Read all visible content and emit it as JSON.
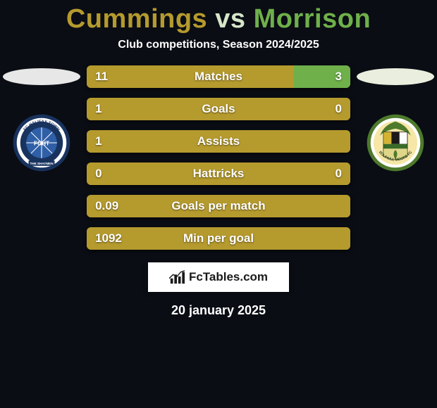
{
  "title": {
    "left": "Cummings",
    "right": "Morrison",
    "left_color": "#b59a2e",
    "right_color": "#6fb04a",
    "vs_color": "#d5e6c9"
  },
  "subtitle": "Club competitions, Season 2024/2025",
  "date": "20 january 2025",
  "brand": "FcTables.com",
  "shadow_left_color": "#e7e7e7",
  "shadow_right_color": "#eaeede",
  "left_crest": {
    "outer": "#19335f",
    "ring": "#ffffff",
    "inner": "#2f5fa6",
    "text": "FCHT",
    "banner": "THE SHAYMEN"
  },
  "right_crest": {
    "outer": "#4e7a2c",
    "ring": "#ffffff",
    "inner": "#f6e7a7"
  },
  "bar_colors": {
    "left": "#b59a2e",
    "right": "#6fb04a"
  },
  "bars": [
    {
      "label": "Matches",
      "left": "11",
      "right": "3",
      "left_pct": 78.6,
      "right_pct": 21.4
    },
    {
      "label": "Goals",
      "left": "1",
      "right": "0",
      "left_pct": 100,
      "right_pct": 0
    },
    {
      "label": "Assists",
      "left": "1",
      "right": "",
      "left_pct": 100,
      "right_pct": 0
    },
    {
      "label": "Hattricks",
      "left": "0",
      "right": "0",
      "left_pct": 100,
      "right_pct": 0
    },
    {
      "label": "Goals per match",
      "left": "0.09",
      "right": "",
      "left_pct": 100,
      "right_pct": 0
    },
    {
      "label": "Min per goal",
      "left": "1092",
      "right": "",
      "left_pct": 100,
      "right_pct": 0
    }
  ]
}
